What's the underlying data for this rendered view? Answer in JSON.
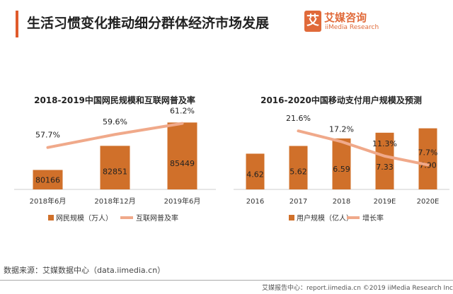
{
  "header": {
    "title": "生活习惯变化推动细分群体经济市场发展",
    "logo_mark": "艾",
    "logo_cn": "艾媒咨询",
    "logo_en": "iiMedia Research"
  },
  "source": "数据来源：艾媒数据中心（data.iimedia.cn）",
  "footer": "艾媒报告中心：report.iimedia.cn  ©2019  iiMedia Research Inc",
  "colors": {
    "bar": "#d0702a",
    "line": "#f0a98a",
    "accent": "#e05a2b"
  },
  "chart_data": [
    {
      "type": "bar+line",
      "title": "2018-2019中国网民规模和互联网普及率",
      "categories": [
        "2018年6月",
        "2018年12月",
        "2019年6月"
      ],
      "series": [
        {
          "name": "网民规模（万人）",
          "type": "bar",
          "values": [
            80166,
            82851,
            85449
          ],
          "labels": [
            "80166",
            "82851",
            "85449"
          ]
        },
        {
          "name": "互联网普及率",
          "type": "line",
          "values": [
            57.7,
            59.6,
            61.2
          ],
          "labels": [
            "57.7%",
            "59.6%",
            "61.2%"
          ]
        }
      ],
      "legend": "bottom",
      "grid": false
    },
    {
      "type": "bar+line",
      "title": "2016-2020中国移动支付用户规模及预测",
      "categories": [
        "2016",
        "2017",
        "2018",
        "2019E",
        "2020E"
      ],
      "series": [
        {
          "name": "用户规模（亿人）",
          "type": "bar",
          "values": [
            4.62,
            5.62,
            6.59,
            7.33,
            7.9
          ],
          "labels": [
            "4.62",
            "5.62",
            "6.59",
            "7.33",
            "7.90"
          ]
        },
        {
          "name": "增长率",
          "type": "line",
          "values": [
            null,
            21.6,
            17.2,
            11.3,
            7.7
          ],
          "labels": [
            "",
            "21.6%",
            "17.2%",
            "11.3%",
            "7.7%"
          ]
        }
      ],
      "legend": "bottom",
      "grid": false
    }
  ]
}
